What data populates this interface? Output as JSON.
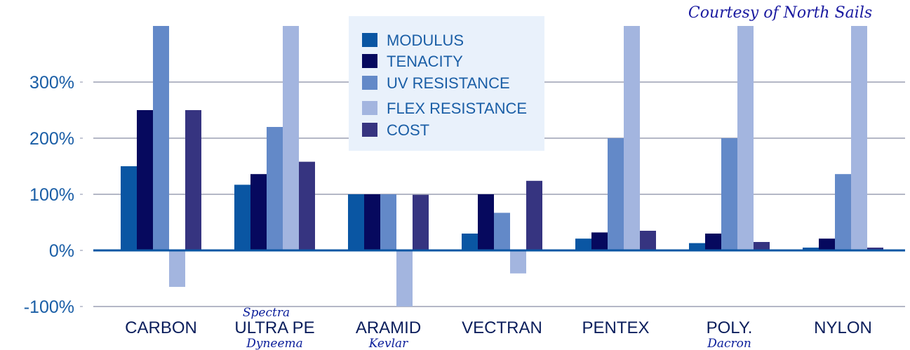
{
  "courtesy": "Courtesy of North Sails",
  "chart_data": {
    "type": "bar",
    "title": "",
    "xlabel": "",
    "ylabel": "",
    "ylim": [
      -100,
      400
    ],
    "yticks": [
      {
        "value": 300,
        "label": "300%"
      },
      {
        "value": 200,
        "label": "200%"
      },
      {
        "value": 100,
        "label": "100%"
      },
      {
        "value": 0,
        "label": "0%"
      },
      {
        "value": -100,
        "label": "-100%"
      }
    ],
    "categories": [
      "CARBON",
      "ULTRA PE",
      "ARAMID",
      "VECTRAN",
      "PENTEX",
      "POLY.",
      "NYLON"
    ],
    "category_notes": [
      {
        "category": "ULTRA PE",
        "above": "Spectra",
        "below": "Dyneema"
      },
      {
        "category": "ARAMID",
        "above": "",
        "below": "Kevlar"
      },
      {
        "category": "POLY.",
        "above": "",
        "below": "Dacron"
      }
    ],
    "legend_position": "top-center",
    "grid": true,
    "series": [
      {
        "name": "MODULUS",
        "color": "#0a56a3",
        "values": [
          150,
          117,
          100,
          30,
          21,
          13,
          5
        ]
      },
      {
        "name": "TENACITY",
        "color": "#06095e",
        "values": [
          250,
          136,
          100,
          100,
          32,
          30,
          21
        ]
      },
      {
        "name": "UV RESISTANCE",
        "color": "#6389c8",
        "values": [
          400,
          220,
          100,
          67,
          200,
          200,
          136
        ]
      },
      {
        "name": "FLEX RESISTANCE",
        "color": "#a3b5df",
        "values": [
          -65,
          400,
          -100,
          -41,
          400,
          400,
          400
        ]
      },
      {
        "name": "COST",
        "color": "#363480",
        "values": [
          250,
          158,
          99,
          124,
          35,
          15,
          5
        ]
      }
    ]
  }
}
